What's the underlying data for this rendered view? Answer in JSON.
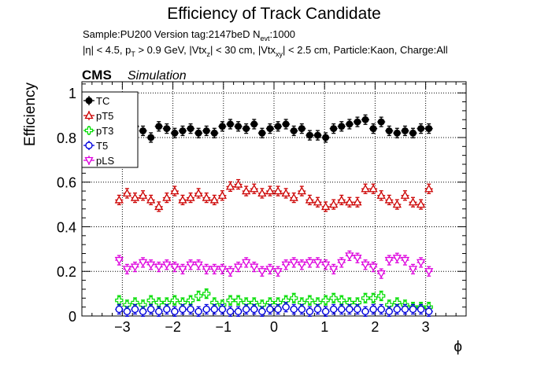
{
  "chart_data": {
    "type": "scatter",
    "title": "Efficiency of Track Candidate",
    "subtitle_line1": {
      "prefix": "Sample:PU200   Version tag:2147beD  N",
      "sub": "evt",
      "suffix": ":1000"
    },
    "subtitle_line2": {
      "t1": "|η| < 4.5, p",
      "s1": "T",
      "t2": " > 0.9 GeV, |Vtx",
      "s2": "z",
      "t3": "| < 30 cm, |Vtx",
      "s3": "xy",
      "t4": "| < 2.5 cm, Particle:Kaon, Charge:All"
    },
    "cms_label": "CMS",
    "simulation_label": "Simulation",
    "xlabel": "ϕ",
    "ylabel": "Efficiency",
    "xlim": [
      -3.8,
      3.8
    ],
    "ylim": [
      0,
      1.05
    ],
    "xticks": [
      -3,
      -2,
      -1,
      0,
      1,
      2,
      3
    ],
    "yticks": [
      0,
      0.2,
      0.4,
      0.6,
      0.8,
      1
    ],
    "xtick_labels": [
      "−3",
      "−2",
      "−1",
      "0",
      "1",
      "2",
      "3"
    ],
    "ytick_labels": [
      "0",
      "0.2",
      "0.4",
      "0.6",
      "0.8",
      "1"
    ],
    "grid": true,
    "legend_position": "top-left",
    "bin_half_width": 0.0785,
    "x": [
      -3.063,
      -2.906,
      -2.749,
      -2.592,
      -2.435,
      -2.278,
      -2.121,
      -1.964,
      -1.807,
      -1.65,
      -1.493,
      -1.336,
      -1.179,
      -1.022,
      -0.864,
      -0.707,
      -0.55,
      -0.393,
      -0.236,
      -0.079,
      0.079,
      0.236,
      0.393,
      0.55,
      0.707,
      0.864,
      1.022,
      1.179,
      1.336,
      1.493,
      1.65,
      1.807,
      1.964,
      2.121,
      2.278,
      2.435,
      2.592,
      2.749,
      2.906,
      3.063
    ],
    "series": [
      {
        "name": "TC",
        "color": "#000000",
        "marker": "filled-circle",
        "values": [
          0.84,
          0.82,
          0.85,
          0.83,
          0.8,
          0.85,
          0.84,
          0.82,
          0.83,
          0.84,
          0.82,
          0.83,
          0.82,
          0.85,
          0.86,
          0.85,
          0.84,
          0.86,
          0.82,
          0.84,
          0.85,
          0.86,
          0.83,
          0.84,
          0.81,
          0.81,
          0.8,
          0.84,
          0.85,
          0.86,
          0.87,
          0.88,
          0.84,
          0.87,
          0.83,
          0.82,
          0.83,
          0.82,
          0.84,
          0.84
        ]
      },
      {
        "name": "pT5",
        "color": "#cc0000",
        "marker": "open-triangle-up",
        "values": [
          0.52,
          0.55,
          0.53,
          0.54,
          0.52,
          0.49,
          0.53,
          0.56,
          0.52,
          0.53,
          0.55,
          0.53,
          0.52,
          0.54,
          0.58,
          0.59,
          0.56,
          0.57,
          0.55,
          0.56,
          0.56,
          0.55,
          0.53,
          0.56,
          0.52,
          0.51,
          0.49,
          0.5,
          0.52,
          0.51,
          0.51,
          0.57,
          0.57,
          0.54,
          0.52,
          0.5,
          0.54,
          0.51,
          0.5,
          0.57
        ]
      },
      {
        "name": "pT3",
        "color": "#00dd00",
        "marker": "open-cross",
        "values": [
          0.07,
          0.05,
          0.06,
          0.05,
          0.07,
          0.06,
          0.06,
          0.07,
          0.06,
          0.07,
          0.09,
          0.1,
          0.06,
          0.05,
          0.07,
          0.07,
          0.06,
          0.06,
          0.05,
          0.06,
          0.06,
          0.07,
          0.08,
          0.06,
          0.07,
          0.06,
          0.07,
          0.08,
          0.07,
          0.06,
          0.06,
          0.08,
          0.08,
          0.09,
          0.05,
          0.06,
          0.05,
          0.04,
          0.04,
          0.04
        ]
      },
      {
        "name": "T5",
        "color": "#0000dd",
        "marker": "open-circle",
        "values": [
          0.03,
          0.02,
          0.03,
          0.02,
          0.03,
          0.02,
          0.03,
          0.02,
          0.03,
          0.03,
          0.02,
          0.03,
          0.03,
          0.03,
          0.02,
          0.02,
          0.03,
          0.03,
          0.02,
          0.03,
          0.03,
          0.04,
          0.03,
          0.03,
          0.02,
          0.03,
          0.02,
          0.03,
          0.03,
          0.03,
          0.03,
          0.02,
          0.03,
          0.03,
          0.02,
          0.03,
          0.03,
          0.03,
          0.03,
          0.02
        ]
      },
      {
        "name": "pLS",
        "color": "#dd00dd",
        "marker": "open-triangle-down",
        "values": [
          0.25,
          0.21,
          0.22,
          0.24,
          0.23,
          0.22,
          0.23,
          0.22,
          0.21,
          0.23,
          0.23,
          0.21,
          0.21,
          0.21,
          0.2,
          0.22,
          0.24,
          0.22,
          0.2,
          0.21,
          0.2,
          0.23,
          0.24,
          0.23,
          0.24,
          0.24,
          0.23,
          0.21,
          0.24,
          0.27,
          0.26,
          0.23,
          0.22,
          0.19,
          0.25,
          0.26,
          0.25,
          0.21,
          0.24,
          0.2
        ]
      }
    ]
  }
}
